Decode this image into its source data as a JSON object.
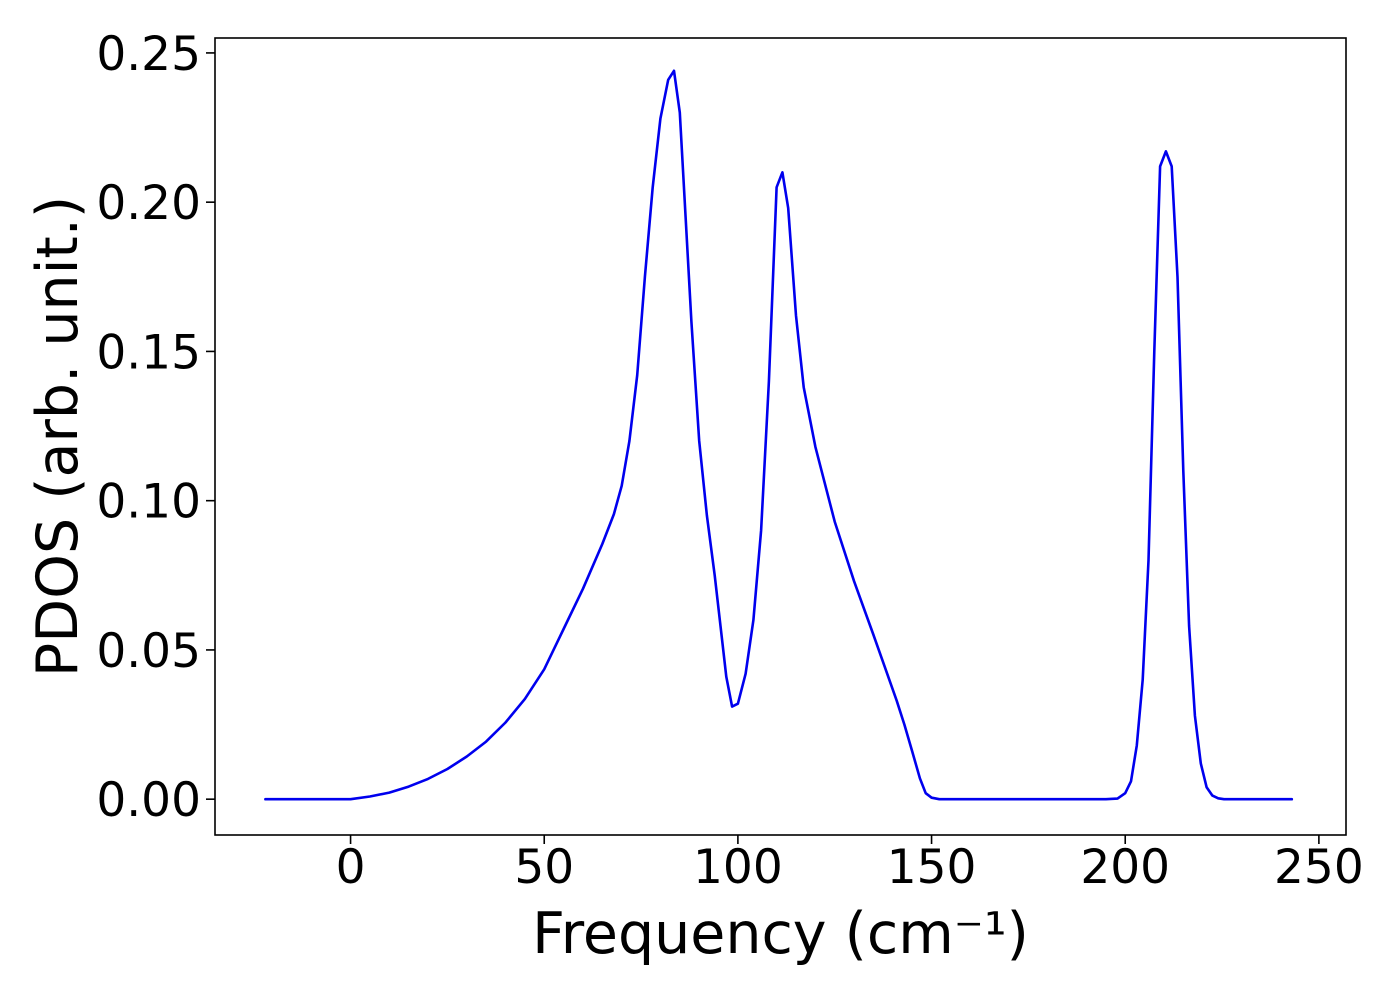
{
  "chart_data": {
    "type": "line",
    "title": "",
    "xlabel": "Frequency (cm⁻¹)",
    "ylabel": "PDOS (arb. unit.)",
    "xlim": [
      -35,
      257
    ],
    "ylim": [
      -0.012,
      0.255
    ],
    "x_ticks": [
      0,
      50,
      100,
      150,
      200,
      250
    ],
    "y_ticks": [
      0.0,
      0.05,
      0.1,
      0.15,
      0.2,
      0.25
    ],
    "x_tick_labels": [
      "0",
      "50",
      "100",
      "150",
      "200",
      "250"
    ],
    "y_tick_labels": [
      "0.00",
      "0.05",
      "0.10",
      "0.15",
      "0.20",
      "0.25"
    ],
    "grid": false,
    "legend": null,
    "series": [
      {
        "color": "#0000ee",
        "x": [
          -22,
          0,
          5,
          10,
          15,
          20,
          25,
          30,
          35,
          40,
          45,
          50,
          55,
          60,
          65,
          68,
          70,
          72,
          74,
          76,
          78,
          80,
          82,
          83.5,
          85,
          86.5,
          88,
          90,
          92,
          94,
          95.5,
          97,
          98.5,
          100,
          102,
          104,
          106,
          108,
          110,
          111.5,
          113,
          115,
          117,
          120,
          125,
          130,
          135,
          138,
          141,
          143,
          145,
          147,
          148.5,
          150,
          152,
          160,
          180,
          195,
          198,
          200,
          201.5,
          203,
          204.5,
          206,
          207.5,
          209,
          210.5,
          212,
          213.5,
          215,
          216.5,
          218,
          219.5,
          221,
          222.5,
          224,
          225.5,
          227,
          230,
          243
        ],
        "y": [
          0,
          0,
          0.0009,
          0.0022,
          0.0042,
          0.0068,
          0.0101,
          0.0143,
          0.0193,
          0.0257,
          0.0336,
          0.0435,
          0.057,
          0.0705,
          0.0855,
          0.0955,
          0.105,
          0.12,
          0.142,
          0.175,
          0.205,
          0.228,
          0.241,
          0.244,
          0.23,
          0.195,
          0.16,
          0.12,
          0.095,
          0.075,
          0.058,
          0.041,
          0.031,
          0.032,
          0.042,
          0.06,
          0.09,
          0.14,
          0.205,
          0.21,
          0.198,
          0.162,
          0.138,
          0.118,
          0.093,
          0.073,
          0.055,
          0.044,
          0.033,
          0.025,
          0.016,
          0.007,
          0.002,
          0.0005,
          0,
          0,
          0,
          0,
          0.0002,
          0.002,
          0.006,
          0.018,
          0.04,
          0.08,
          0.15,
          0.212,
          0.217,
          0.212,
          0.175,
          0.11,
          0.058,
          0.028,
          0.012,
          0.004,
          0.0012,
          0.0003,
          0,
          0,
          0,
          0
        ]
      }
    ]
  }
}
